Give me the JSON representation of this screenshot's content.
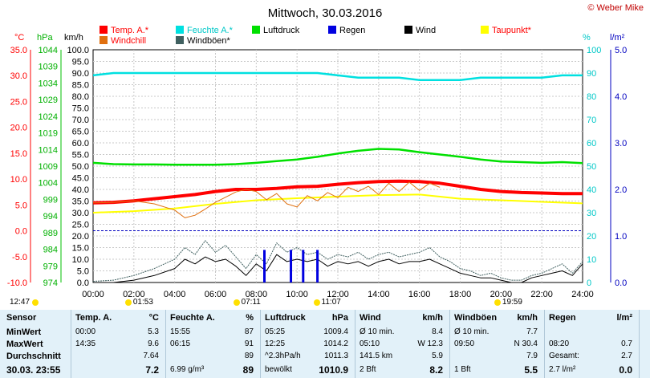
{
  "title": "Mittwoch, 30.03.2016",
  "copyright": "© Weber Mike",
  "axis_units": {
    "temp": "°C",
    "hpa": "hPa",
    "kmh": "km/h",
    "pct": "%",
    "rain": "l/m²"
  },
  "colors": {
    "temp": "#ff0000",
    "feuchte": "#00e0e0",
    "luftdruck": "#00e000",
    "regen": "#0000e0",
    "wind": "#000000",
    "taupunkt": "#ffff00",
    "windchill": "#e07010",
    "windboeen": "#406060"
  },
  "legend": [
    {
      "key": "temp",
      "label": "Temp. A.*"
    },
    {
      "key": "feuchte",
      "label": "Feuchte A.*"
    },
    {
      "key": "luftdruck",
      "label": "Luftdruck"
    },
    {
      "key": "regen",
      "label": "Regen"
    },
    {
      "key": "wind",
      "label": "Wind"
    },
    {
      "key": "taupunkt",
      "label": "Taupunkt*"
    },
    {
      "key": "windchill",
      "label": "Windchill"
    },
    {
      "key": "windboeen",
      "label": "Windböen*"
    }
  ],
  "chart_data": {
    "type": "line",
    "x_ticks": [
      "00:00",
      "02:00",
      "04:00",
      "06:00",
      "08:00",
      "10:00",
      "12:00",
      "14:00",
      "16:00",
      "18:00",
      "20:00",
      "22:00",
      "24:00"
    ],
    "temp_ticks": [
      "35.0",
      "30.0",
      "25.0",
      "20.0",
      "15.0",
      "10.0",
      "5.0",
      "0.0",
      "-5.0",
      "-10.0"
    ],
    "hpa_ticks": [
      "1044",
      "1039",
      "1034",
      "1029",
      "1024",
      "1019",
      "1014",
      "1009",
      "1004",
      "999",
      "994",
      "989",
      "984",
      "979",
      "974"
    ],
    "kmh_ticks": [
      "100.0",
      "95.0",
      "90.0",
      "85.0",
      "80.0",
      "75.0",
      "70.0",
      "65.0",
      "60.0",
      "55.0",
      "50.0",
      "45.0",
      "40.0",
      "35.0",
      "30.0",
      "25.0",
      "20.0",
      "15.0",
      "10.0",
      "5.0",
      "0.0"
    ],
    "pct_ticks": [
      "100",
      "90",
      "80",
      "70",
      "60",
      "50",
      "40",
      "30",
      "20",
      "10",
      "0"
    ],
    "rain_ticks": [
      "5.0",
      "4.0",
      "3.0",
      "2.0",
      "1.0",
      "0.0"
    ],
    "ylim_temp": [
      -10,
      35
    ],
    "ylim_kmh": [
      0,
      100
    ],
    "ylim_pct": [
      0,
      100
    ],
    "ylim_rain": [
      0,
      5
    ],
    "series": [
      {
        "key": "feuchte",
        "axis": "pct",
        "x": [
          0,
          1,
          2,
          3,
          4,
          5,
          6,
          7,
          8,
          9,
          10,
          11,
          12,
          13,
          14,
          15,
          16,
          17,
          18,
          19,
          20,
          21,
          22,
          23,
          24
        ],
        "y": [
          89,
          90,
          90,
          90,
          90,
          90,
          90,
          90,
          90,
          90,
          90,
          90,
          89,
          88,
          88,
          88,
          87,
          87,
          87,
          88,
          88,
          88,
          88,
          89,
          89
        ]
      },
      {
        "key": "luftdruck",
        "axis": "hpa",
        "x": [
          0,
          1,
          2,
          3,
          4,
          5,
          6,
          7,
          8,
          9,
          10,
          11,
          12,
          13,
          14,
          15,
          16,
          17,
          18,
          19,
          20,
          21,
          22,
          23,
          24
        ],
        "y": [
          1010.0,
          1009.6,
          1009.5,
          1009.5,
          1009.4,
          1009.4,
          1009.4,
          1009.6,
          1010.0,
          1010.5,
          1011.0,
          1011.8,
          1012.8,
          1013.6,
          1014.2,
          1014.0,
          1013.2,
          1012.5,
          1011.8,
          1011.0,
          1010.4,
          1010.2,
          1010.0,
          1010.2,
          1009.9
        ]
      },
      {
        "key": "temp",
        "axis": "temp",
        "x": [
          0,
          1,
          2,
          3,
          4,
          5,
          6,
          7,
          8,
          9,
          10,
          11,
          12,
          13,
          14,
          15,
          16,
          17,
          18,
          19,
          20,
          21,
          22,
          23,
          24
        ],
        "y": [
          5.4,
          5.5,
          5.8,
          6.2,
          6.6,
          7.0,
          7.6,
          8.0,
          8.0,
          8.2,
          8.5,
          8.6,
          9.0,
          9.3,
          9.5,
          9.6,
          9.5,
          9.2,
          8.6,
          8.0,
          7.6,
          7.4,
          7.3,
          7.2,
          7.2
        ]
      },
      {
        "key": "taupunkt",
        "axis": "temp",
        "x": [
          0,
          2,
          4,
          6,
          8,
          10,
          12,
          14,
          16,
          18,
          20,
          22,
          24
        ],
        "y": [
          3.5,
          3.8,
          4.3,
          5.2,
          5.9,
          6.3,
          6.6,
          6.9,
          7.0,
          6.2,
          5.9,
          5.6,
          5.3
        ]
      },
      {
        "key": "windchill",
        "axis": "temp",
        "x": [
          0,
          1,
          2,
          3,
          4,
          4.5,
          5,
          5.5,
          6,
          6.5,
          7,
          7.5,
          8,
          8.5,
          9,
          9.5,
          10,
          10.5,
          11,
          11.5,
          12,
          12.5,
          13,
          13.5,
          14,
          14.5,
          15,
          15.5,
          16,
          16.5,
          17
        ],
        "y": [
          5.4,
          5.5,
          5.8,
          5.2,
          4.0,
          2.5,
          3.0,
          4.2,
          5.5,
          6.5,
          7.5,
          8.0,
          7.6,
          6.0,
          7.2,
          5.2,
          4.6,
          6.8,
          5.8,
          7.4,
          6.4,
          8.4,
          7.6,
          8.6,
          7.0,
          9.2,
          7.6,
          9.4,
          7.8,
          9.2,
          8.4
        ]
      },
      {
        "key": "windboeen",
        "axis": "kmh",
        "x": [
          0,
          1,
          2,
          3,
          4,
          4.5,
          5,
          5.5,
          6,
          6.5,
          7,
          7.5,
          8,
          8.5,
          9,
          9.5,
          10,
          10.5,
          11,
          11.5,
          12,
          12.5,
          13,
          13.5,
          14,
          14.5,
          15,
          15.5,
          16,
          16.5,
          17,
          17.5,
          18,
          18.5,
          19,
          19.5,
          20,
          20.5,
          21,
          21.5,
          22,
          22.5,
          23,
          23.5,
          24
        ],
        "y": [
          0.5,
          1,
          3,
          6,
          10,
          15,
          12,
          18,
          13,
          16,
          11,
          6,
          12,
          8,
          17,
          13,
          15,
          12,
          13,
          10,
          12,
          11,
          13,
          10,
          12,
          13,
          11,
          12,
          13,
          15,
          11,
          9,
          6,
          5,
          3,
          4,
          2,
          1,
          1,
          3,
          4,
          6,
          8,
          4,
          9
        ]
      },
      {
        "key": "wind",
        "axis": "kmh",
        "x": [
          0,
          1,
          2,
          3,
          4,
          4.5,
          5,
          5.5,
          6,
          6.5,
          7,
          7.5,
          8,
          8.5,
          9,
          9.5,
          10,
          10.5,
          11,
          11.5,
          12,
          12.5,
          13,
          13.5,
          14,
          14.5,
          15,
          15.5,
          16,
          16.5,
          17,
          17.5,
          18,
          18.5,
          19,
          19.5,
          20,
          20.5,
          21,
          21.5,
          22,
          22.5,
          23,
          23.5,
          24
        ],
        "y": [
          0,
          0,
          1,
          3,
          6,
          10,
          8,
          11,
          9,
          10,
          7,
          3,
          8,
          5,
          12,
          9,
          10,
          9,
          10,
          7,
          9,
          8,
          9,
          7,
          9,
          10,
          8,
          9,
          9,
          10,
          8,
          6,
          4,
          3,
          2,
          2,
          1,
          0,
          0,
          2,
          3,
          4,
          5,
          3,
          8
        ]
      },
      {
        "key": "regen",
        "axis": "rain",
        "type": "bar",
        "x": [
          8.4,
          9.7,
          10.3,
          11.0
        ],
        "y": [
          0.7,
          0.7,
          0.7,
          0.7
        ]
      }
    ]
  },
  "sun": {
    "left": "12:47",
    "markers": [
      {
        "label": "01:53"
      },
      {
        "label": "07:11"
      },
      {
        "label": "11:07"
      },
      {
        "label": "19:59"
      }
    ]
  },
  "table": {
    "sensor": {
      "hdr": "Sensor",
      "rows": [
        "MinWert",
        "MaxWert",
        "Durchschnitt"
      ],
      "current": "30.03. 23:55"
    },
    "temp": {
      "hdr": "Temp. A.",
      "unit": "°C",
      "rows": [
        [
          "00:00",
          "5.3"
        ],
        [
          "14:35",
          "9.6"
        ],
        [
          "",
          "7.64"
        ]
      ],
      "current": "7.2"
    },
    "feuchte": {
      "hdr": "Feuchte A.",
      "unit": "%",
      "rows": [
        [
          "15:55",
          "87"
        ],
        [
          "06:15",
          "91"
        ],
        [
          "",
          "89"
        ]
      ],
      "current_left": "6.99 g/m³",
      "current": "89"
    },
    "luft": {
      "hdr": "Luftdruck",
      "unit": "hPa",
      "rows": [
        [
          "05:25",
          "1009.4"
        ],
        [
          "12:25",
          "1014.2"
        ],
        [
          "^2.3hPa/h",
          "1011.3"
        ]
      ],
      "current_left": "bewölkt",
      "current": "1010.9"
    },
    "wind": {
      "hdr": "Wind",
      "unit": "km/h",
      "rows": [
        [
          "Ø 10 min.",
          "8.4"
        ],
        [
          "05:10",
          "W 12.3"
        ],
        [
          "141.5 km",
          "5.9"
        ]
      ],
      "current_left": "2 Bft",
      "current": "8.2"
    },
    "boeen": {
      "hdr": "Windböen",
      "unit": "km/h",
      "rows": [
        [
          "Ø 10 min.",
          "7.7"
        ],
        [
          "09:50",
          "N 30.4"
        ],
        [
          "",
          "7.9"
        ]
      ],
      "current_left": "1 Bft",
      "current": "5.5"
    },
    "regen": {
      "hdr": "Regen",
      "unit": "l/m²",
      "rows": [
        [
          "",
          ""
        ],
        [
          "08:20",
          "0.7"
        ],
        [
          "Gesamt:",
          "2.7"
        ]
      ],
      "current_left": "2.7 l/m²",
      "current": "0.0"
    }
  }
}
